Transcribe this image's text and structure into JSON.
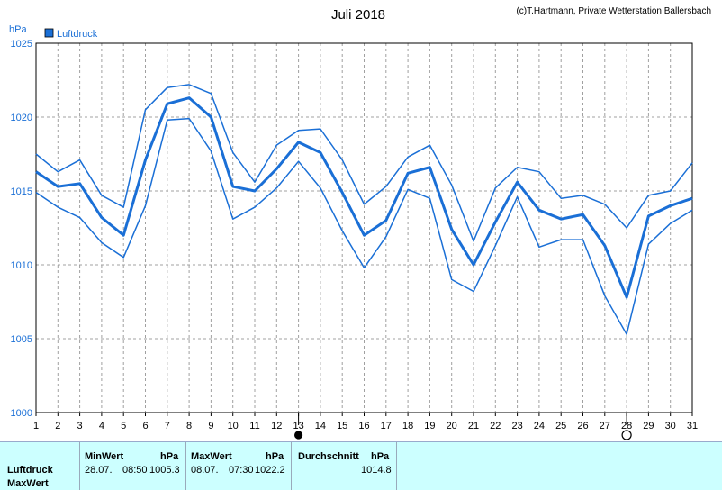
{
  "header": {
    "title": "Juli 2018",
    "copyright": "(c)T.Hartmann, Private Wetterstation Ballersbach",
    "unit": "hPa",
    "legend": "Luftdruck"
  },
  "colors": {
    "line": "#1a6fd6",
    "legend_box": "#1a6fd6",
    "grid": "#a0a0a0",
    "panel": "#ccffff"
  },
  "chart_data": {
    "type": "line",
    "title": "Juli 2018",
    "ylabel": "hPa",
    "xlabel": "",
    "ylim": [
      1000,
      1025
    ],
    "yticks": [
      1000,
      1005,
      1010,
      1015,
      1020,
      1025
    ],
    "x": [
      1,
      2,
      3,
      4,
      5,
      6,
      7,
      8,
      9,
      10,
      11,
      12,
      13,
      14,
      15,
      16,
      17,
      18,
      19,
      20,
      21,
      22,
      23,
      24,
      25,
      26,
      27,
      28,
      29,
      30,
      31
    ],
    "grid": true,
    "legend_position": "top-left",
    "markers": [
      {
        "day": 13,
        "symbol": "full-moon-filled"
      },
      {
        "day": 28,
        "symbol": "moon-open"
      }
    ],
    "series": [
      {
        "name": "Luftdruck",
        "role": "max",
        "values": [
          1017.5,
          1016.3,
          1017.1,
          1014.7,
          1013.9,
          1020.5,
          1022.0,
          1022.2,
          1021.6,
          1017.6,
          1015.6,
          1018.1,
          1019.1,
          1019.2,
          1017.1,
          1014.1,
          1015.3,
          1017.3,
          1018.1,
          1015.4,
          1011.6,
          1015.2,
          1016.6,
          1016.3,
          1014.5,
          1014.7,
          1014.1,
          1012.5,
          1014.7,
          1015.0,
          1016.9
        ],
        "stroke_width": 1.5
      },
      {
        "name": "Luftdruck",
        "role": "mean",
        "values": [
          1016.3,
          1015.3,
          1015.5,
          1013.2,
          1012.0,
          1017.1,
          1020.9,
          1021.3,
          1020.0,
          1015.3,
          1015.0,
          1016.5,
          1018.3,
          1017.6,
          1014.9,
          1012.0,
          1013.0,
          1016.2,
          1016.6,
          1012.4,
          1010.0,
          1012.9,
          1015.6,
          1013.7,
          1013.1,
          1013.4,
          1011.3,
          1007.8,
          1013.3,
          1014.0,
          1014.5
        ],
        "stroke_width": 3
      },
      {
        "name": "Luftdruck",
        "role": "min",
        "values": [
          1014.9,
          1013.9,
          1013.2,
          1011.5,
          1010.5,
          1014.0,
          1019.8,
          1019.9,
          1017.7,
          1013.1,
          1013.9,
          1015.2,
          1017.0,
          1015.2,
          1012.3,
          1009.8,
          1011.9,
          1015.1,
          1014.5,
          1009.0,
          1008.2,
          1011.3,
          1014.6,
          1011.2,
          1011.7,
          1011.7,
          1007.9,
          1005.3,
          1011.4,
          1012.8,
          1013.7
        ],
        "stroke_width": 1.5
      }
    ]
  },
  "stats": {
    "row1_label": "Luftdruck",
    "row2_label": "MaxWert",
    "min_header": "MinWert",
    "max_header": "MaxWert",
    "avg_header": "Durchschnitt",
    "unit": "hPa",
    "min_date": "28.07.",
    "min_time": "08:50",
    "min_value": "1005.3",
    "max_date": "08.07.",
    "max_time": "07:30",
    "max_value": "1022.2",
    "avg_value": "1014.8"
  }
}
